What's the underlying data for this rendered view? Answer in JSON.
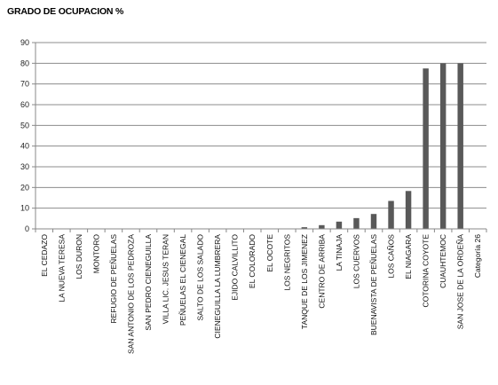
{
  "chart_data": {
    "type": "bar",
    "title": "GRADO DE OCUPACION %",
    "xlabel": "",
    "ylabel": "",
    "ylim": [
      0,
      90
    ],
    "yticks": [
      0,
      10,
      20,
      30,
      40,
      50,
      60,
      70,
      80,
      90
    ],
    "grid": true,
    "legend": "none",
    "bar_color": "#595959",
    "categories": [
      "EL CEDAZO",
      "LA NUEVA TERESA",
      "LOS DURON",
      "MONTORO",
      "REFUGIO DE PEÑUELAS",
      "SAN ANTONIO DE LOS PEDROZA",
      "SAN PEDRO CIENEGUILLA",
      "VILLA LIC. JESUS TERAN",
      "PEÑUELAS EL CIENEGAL",
      "SALTO DE LOS SALADO",
      "CIENEGUILLA LA LUMBRERA",
      "EJIDO CALVILLITO",
      "EL COLORADO",
      "EL OCOTE",
      "LOS NEGRITOS",
      "TANQUE DE LOS JIMENEZ",
      "CENTRO DE ARRIBA",
      "LA TINAJA",
      "LOS CUERVOS",
      "BUENAVISTA DE PEÑUELAS",
      "LOS CAÑOS",
      "EL NIAGARA",
      "COTORINA COYOTE",
      "CUAUHTEMOC",
      "SAN JOSE DE LA ORDEÑA",
      "Categoría 26"
    ],
    "values": [
      0,
      0,
      0,
      0,
      0,
      0,
      0,
      0,
      0,
      0,
      0,
      0,
      0,
      0,
      0,
      0.8,
      1.8,
      3.5,
      5.2,
      7.2,
      13.5,
      18.3,
      77.5,
      80,
      80,
      0
    ]
  }
}
